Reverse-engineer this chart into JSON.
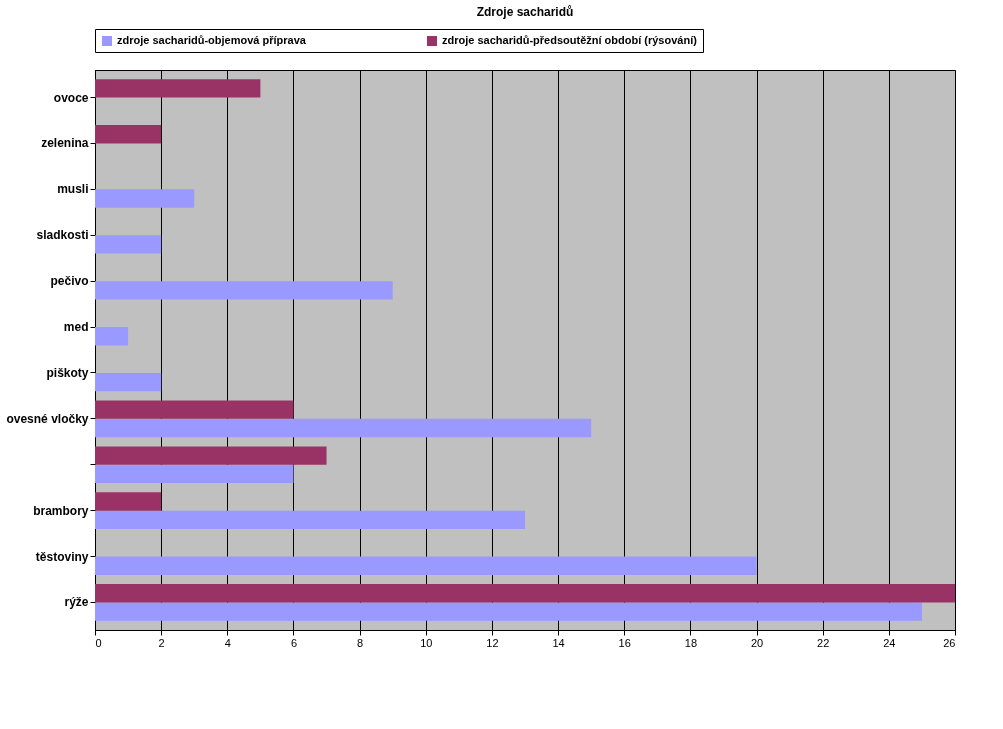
{
  "chart_data": {
    "type": "bar",
    "orientation": "horizontal",
    "title": "Zdroje sacharidů",
    "categories": [
      "ovoce",
      "zelenina",
      "musli",
      "sladkosti",
      "pečivo",
      "med",
      "piškoty",
      "ovesné vločky",
      null,
      "brambory",
      "těstoviny",
      "rýže"
    ],
    "series": [
      {
        "name": "zdroje sacharidů-objemová příprava",
        "color": "#9999ff",
        "values": [
          0,
          0,
          3,
          2,
          9,
          1,
          2,
          15,
          6,
          13,
          20,
          25
        ]
      },
      {
        "name": "zdroje sacharidů-předsoutěžní období (rýsování)",
        "color": "#993366",
        "values": [
          5,
          2,
          0,
          0,
          0,
          0,
          0,
          6,
          7,
          2,
          0,
          26
        ]
      }
    ],
    "xlim": [
      0,
      26
    ],
    "xticks": [
      0,
      2,
      4,
      6,
      8,
      10,
      12,
      14,
      16,
      18,
      20,
      22,
      24,
      26
    ],
    "grid": "x",
    "legend": "top"
  }
}
